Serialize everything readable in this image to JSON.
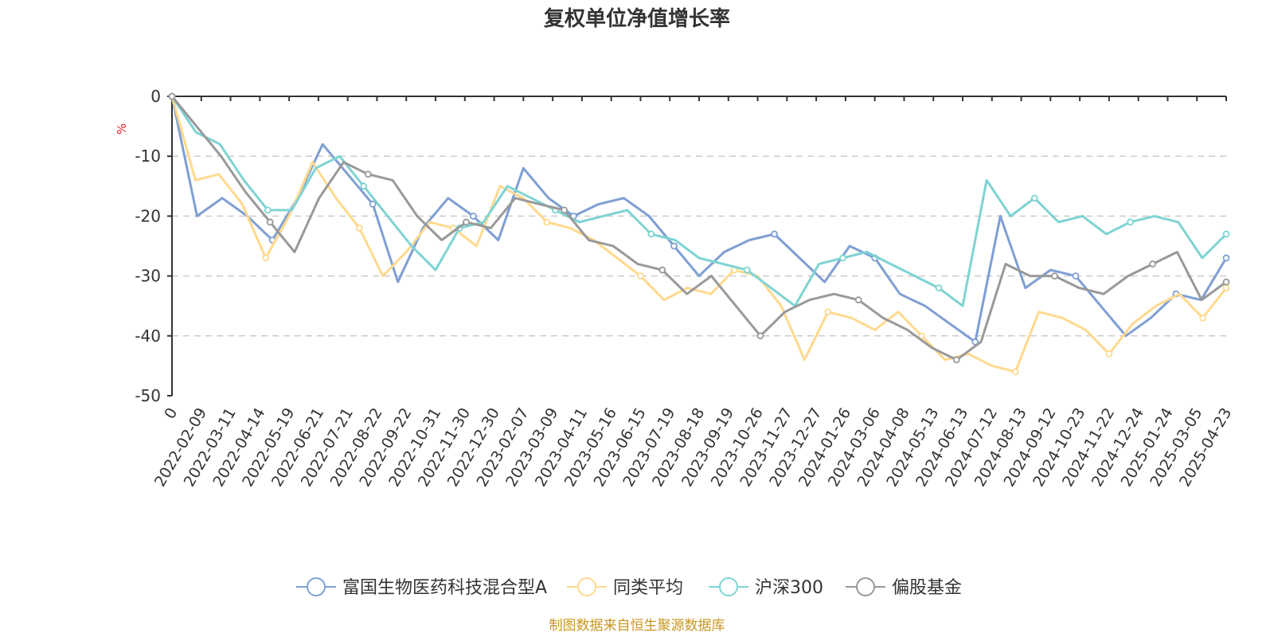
{
  "chart_data": {
    "type": "line",
    "title": "复权单位净值增长率",
    "unit": "%",
    "ylim": [
      -50,
      0
    ],
    "y_ticks": [
      0,
      -10,
      -20,
      -30,
      -40,
      -50
    ],
    "grid": true,
    "legend_position": "bottom",
    "x_tick_labels": [
      "0",
      "2022-02-09",
      "2022-03-11",
      "2022-04-14",
      "2022-05-19",
      "2022-06-21",
      "2022-07-21",
      "2022-08-22",
      "2022-09-22",
      "2022-10-31",
      "2022-11-30",
      "2022-12-30",
      "2023-02-07",
      "2023-03-09",
      "2023-04-11",
      "2023-05-16",
      "2023-06-15",
      "2023-07-19",
      "2023-08-18",
      "2023-09-19",
      "2023-10-26",
      "2023-11-27",
      "2023-12-27",
      "2024-01-26",
      "2024-03-06",
      "2024-04-08",
      "2024-05-13",
      "2024-06-13",
      "2024-07-12",
      "2024-08-13",
      "2024-09-12",
      "2024-10-23",
      "2024-11-22",
      "2024-12-24",
      "2025-01-24",
      "2025-03-05",
      "2025-04-23"
    ],
    "series": [
      {
        "name": "富国生物医药科技混合型A",
        "color": "#7f9fd3",
        "values": [
          0,
          -20,
          -17,
          -20,
          -24,
          -17,
          -8,
          -13,
          -18,
          -31,
          -22,
          -17,
          -20,
          -24,
          -12,
          -17,
          -20,
          -18,
          -17,
          -20,
          -25,
          -30,
          -26,
          -24,
          -23,
          -27,
          -31,
          -25,
          -27,
          -33,
          -35,
          -38,
          -41,
          -20,
          -32,
          -29,
          -30,
          -35,
          -40,
          -37,
          -33,
          -34,
          -27
        ]
      },
      {
        "name": "同类平均",
        "color": "#ffd98e",
        "values": [
          0,
          -14,
          -13,
          -18,
          -27,
          -20,
          -11,
          -17,
          -22,
          -30,
          -26,
          -21,
          -22,
          -25,
          -15,
          -17,
          -21,
          -22,
          -24,
          -27,
          -30,
          -34,
          -32,
          -33,
          -29,
          -30,
          -35,
          -44,
          -36,
          -37,
          -39,
          -36,
          -40,
          -44,
          -43,
          -45,
          -46,
          -36,
          -37,
          -39,
          -43,
          -38,
          -35,
          -33,
          -37,
          -32
        ]
      },
      {
        "name": "沪深300",
        "color": "#7fd3d3",
        "values": [
          0,
          -6,
          -8,
          -14,
          -19,
          -19,
          -12,
          -10,
          -15,
          -20,
          -25,
          -29,
          -22,
          -21,
          -15,
          -17,
          -19,
          -21,
          -20,
          -19,
          -23,
          -24,
          -27,
          -28,
          -29,
          -32,
          -35,
          -28,
          -27,
          -26,
          -28,
          -30,
          -32,
          -35,
          -14,
          -20,
          -17,
          -21,
          -20,
          -23,
          -21,
          -20,
          -21,
          -27,
          -23
        ]
      },
      {
        "name": "偏股基金",
        "color": "#999999",
        "values": [
          0,
          -5,
          -10,
          -16,
          -21,
          -26,
          -17,
          -11,
          -13,
          -14,
          -20,
          -24,
          -21,
          -22,
          -17,
          -18,
          -19,
          -24,
          -25,
          -28,
          -29,
          -33,
          -30,
          -35,
          -40,
          -36,
          -34,
          -33,
          -34,
          -37,
          -39,
          -42,
          -44,
          -41,
          -28,
          -30,
          -30,
          -32,
          -33,
          -30,
          -28,
          -26,
          -34,
          -31
        ]
      }
    ]
  },
  "legend": {
    "items": [
      "富国生物医药科技混合型A",
      "同类平均",
      "沪深300",
      "偏股基金"
    ]
  },
  "footer": {
    "source": "制图数据来自恒生聚源数据库"
  }
}
